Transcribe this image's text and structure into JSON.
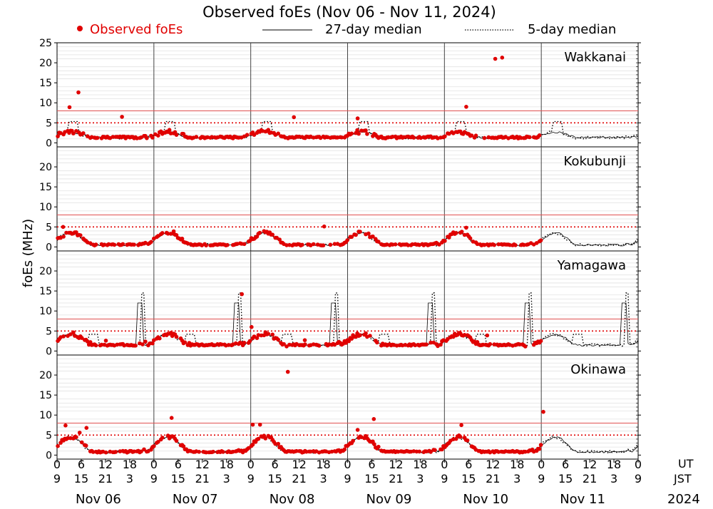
{
  "chart_data": {
    "type": "scatter",
    "title": "Observed foEs (Nov 06 - Nov 11, 2024)",
    "ylabel": "foEs (MHz)",
    "ylim": [
      0,
      25
    ],
    "yticks": [
      0,
      5,
      10,
      15,
      20,
      25
    ],
    "xlim_hours": [
      0,
      144
    ],
    "legend": {
      "observed": "Observed foEs",
      "median27": "27-day median",
      "median5": "5-day median",
      "position": "top"
    },
    "x_ut_ticks": [
      "0",
      "6",
      "12",
      "18",
      "0",
      "6",
      "12",
      "18",
      "0",
      "6",
      "12",
      "18",
      "0",
      "6",
      "12",
      "18",
      "0",
      "6",
      "12",
      "18",
      "0",
      "6",
      "12",
      "18",
      "0"
    ],
    "x_jst_ticks": [
      "9",
      "15",
      "21",
      "3",
      "9",
      "15",
      "21",
      "3",
      "9",
      "15",
      "21",
      "3",
      "9",
      "15",
      "21",
      "3",
      "9",
      "15",
      "21",
      "3",
      "9",
      "15",
      "21",
      "3",
      "9"
    ],
    "ut_label": "UT",
    "jst_label": "JST",
    "days": [
      "Nov 06",
      "Nov 07",
      "Nov 08",
      "Nov 09",
      "Nov 10",
      "Nov 11"
    ],
    "year": "2024",
    "threshold_solid": 8,
    "threshold_dotted": 5,
    "colors": {
      "observed": "#e00000",
      "threshold": "#e05050",
      "grid": "#c8c8c8",
      "axis": "#000000"
    },
    "stations": [
      {
        "name": "Wakkanai",
        "base": 2.7,
        "night": 1.3,
        "peak": 0,
        "spike": 0,
        "noise": 0.8,
        "obs_until": 120,
        "outliers": [
          [
            3.1,
            8.9
          ],
          [
            5.3,
            12.6
          ],
          [
            101.4,
            9.0
          ],
          [
            108.6,
            21.0
          ],
          [
            110.3,
            21.3
          ],
          [
            16.1,
            6.5
          ],
          [
            58.7,
            6.4
          ],
          [
            74.5,
            6.1
          ]
        ],
        "median5_bumps": [
          [
            4,
            5.3
          ],
          [
            28,
            5.3
          ],
          [
            52,
            5.3
          ],
          [
            76,
            5.3
          ],
          [
            100,
            5.3
          ],
          [
            124,
            5.3
          ]
        ]
      },
      {
        "name": "Kokubunji",
        "base": 3.5,
        "night": 0.5,
        "peak": 0,
        "spike": 0,
        "noise": 0.6,
        "obs_until": 120,
        "outliers": [
          [
            1.5,
            5.0
          ],
          [
            66.2,
            5.1
          ],
          [
            28.9,
            3.9
          ],
          [
            101.4,
            4.8
          ]
        ],
        "median5_bumps": []
      },
      {
        "name": "Yamagawa",
        "base": 4.2,
        "night": 1.5,
        "peak": 0,
        "spike": 12,
        "noise": 0.7,
        "obs_until": 120,
        "outliers": [
          [
            48.2,
            6.0
          ],
          [
            61.4,
            2.7
          ],
          [
            106.6,
            3.9
          ],
          [
            45.8,
            14.2
          ],
          [
            12.1,
            2.6
          ]
        ],
        "median5_bumps": [
          [
            9,
            4.2
          ],
          [
            33,
            4.2
          ],
          [
            57,
            4.2
          ],
          [
            81,
            4.2
          ],
          [
            105,
            4.2
          ],
          [
            129,
            4.2
          ]
        ]
      },
      {
        "name": "Okinawa",
        "base": 4.5,
        "night": 0.8,
        "peak": 0,
        "spike": 0,
        "noise": 0.7,
        "obs_until": 120,
        "outliers": [
          [
            2.1,
            7.4
          ],
          [
            7.3,
            6.8
          ],
          [
            28.4,
            9.3
          ],
          [
            48.5,
            7.6
          ],
          [
            50.3,
            7.6
          ],
          [
            57.2,
            20.8
          ],
          [
            74.5,
            6.3
          ],
          [
            78.5,
            9.0
          ],
          [
            100.2,
            7.5
          ],
          [
            120.5,
            10.8
          ],
          [
            5.6,
            5.6
          ]
        ],
        "median5_bumps": []
      }
    ]
  }
}
